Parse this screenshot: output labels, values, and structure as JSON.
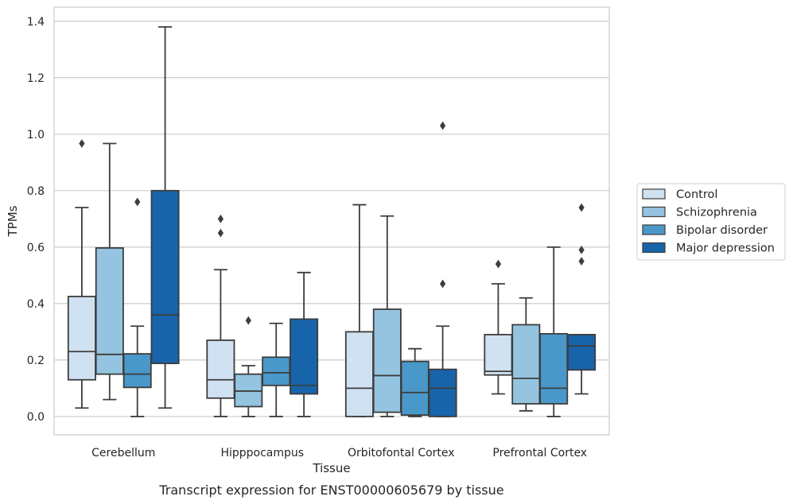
{
  "chart_data": {
    "type": "box",
    "caption": "Transcript expression for ENST00000605679 by tissue",
    "xlabel": "Tissue",
    "ylabel": "TPMs",
    "ylim": [
      -0.065,
      1.45
    ],
    "yticks": [
      0.0,
      0.2,
      0.4,
      0.6,
      0.8,
      1.0,
      1.2,
      1.4
    ],
    "ytick_labels": [
      "0.0",
      "0.2",
      "0.4",
      "0.6",
      "0.8",
      "1.0",
      "1.2",
      "1.4"
    ],
    "grid": "horizontal",
    "legend_position": "right",
    "categories": [
      "Cerebellum",
      "Hipppocampus",
      "Orbitofontal Cortex",
      "Prefrontal Cortex"
    ],
    "series": [
      {
        "name": "Control",
        "color": "#d0e1f2",
        "boxes": [
          {
            "whislo": 0.03,
            "q1": 0.13,
            "med": 0.23,
            "q3": 0.425,
            "whishi": 0.74,
            "fliers": [
              0.967
            ]
          },
          {
            "whislo": 0.0,
            "q1": 0.065,
            "med": 0.13,
            "q3": 0.27,
            "whishi": 0.52,
            "fliers": [
              0.65,
              0.7
            ]
          },
          {
            "whislo": 0.0,
            "q1": 0.0,
            "med": 0.1,
            "q3": 0.3,
            "whishi": 0.75,
            "fliers": []
          },
          {
            "whislo": 0.08,
            "q1": 0.147,
            "med": 0.16,
            "q3": 0.29,
            "whishi": 0.47,
            "fliers": [
              0.54
            ]
          }
        ]
      },
      {
        "name": "Schizophrenia",
        "color": "#94c4df",
        "boxes": [
          {
            "whislo": 0.06,
            "q1": 0.15,
            "med": 0.22,
            "q3": 0.597,
            "whishi": 0.967,
            "fliers": []
          },
          {
            "whislo": 0.0,
            "q1": 0.035,
            "med": 0.09,
            "q3": 0.15,
            "whishi": 0.18,
            "fliers": [
              0.34
            ]
          },
          {
            "whislo": 0.0,
            "q1": 0.015,
            "med": 0.145,
            "q3": 0.38,
            "whishi": 0.71,
            "fliers": []
          },
          {
            "whislo": 0.02,
            "q1": 0.045,
            "med": 0.135,
            "q3": 0.325,
            "whishi": 0.42,
            "fliers": []
          }
        ]
      },
      {
        "name": "Bipolar disorder",
        "color": "#4a98c9",
        "boxes": [
          {
            "whislo": 0.0,
            "q1": 0.103,
            "med": 0.15,
            "q3": 0.222,
            "whishi": 0.32,
            "fliers": [
              0.76
            ]
          },
          {
            "whislo": 0.0,
            "q1": 0.11,
            "med": 0.155,
            "q3": 0.21,
            "whishi": 0.33,
            "fliers": []
          },
          {
            "whislo": 0.0,
            "q1": 0.005,
            "med": 0.085,
            "q3": 0.195,
            "whishi": 0.24,
            "fliers": []
          },
          {
            "whislo": 0.0,
            "q1": 0.045,
            "med": 0.1,
            "q3": 0.293,
            "whishi": 0.6,
            "fliers": []
          }
        ]
      },
      {
        "name": "Major depression",
        "color": "#1764ab",
        "boxes": [
          {
            "whislo": 0.03,
            "q1": 0.188,
            "med": 0.36,
            "q3": 0.8,
            "whishi": 1.38,
            "fliers": []
          },
          {
            "whislo": 0.0,
            "q1": 0.08,
            "med": 0.11,
            "q3": 0.345,
            "whishi": 0.51,
            "fliers": []
          },
          {
            "whislo": 0.0,
            "q1": 0.0,
            "med": 0.1,
            "q3": 0.167,
            "whishi": 0.32,
            "fliers": [
              0.47,
              1.03
            ]
          },
          {
            "whislo": 0.08,
            "q1": 0.165,
            "med": 0.25,
            "q3": 0.29,
            "whishi": 0.29,
            "fliers": [
              0.55,
              0.59,
              0.74
            ]
          }
        ]
      }
    ]
  }
}
